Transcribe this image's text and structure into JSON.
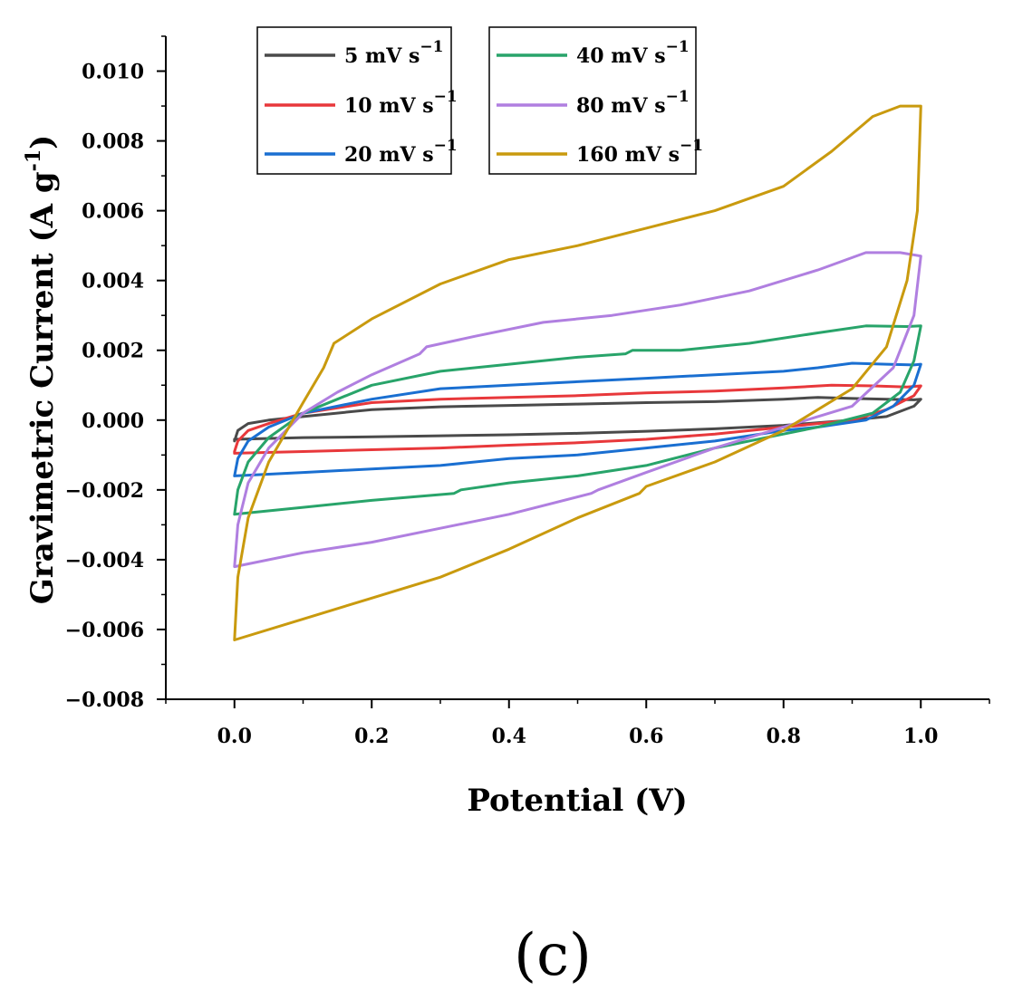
{
  "chart_data": {
    "type": "line",
    "title": "",
    "panel_label": "(c)",
    "xlabel": "Potential (V)",
    "ylabel_main": "Gravimetric Current (A g",
    "ylabel_sup": "-1",
    "ylabel_close": ")",
    "xlim": [
      -0.1,
      1.1
    ],
    "ylim": [
      -0.008,
      0.011
    ],
    "xticks": [
      0.0,
      0.2,
      0.4,
      0.6,
      0.8,
      1.0
    ],
    "xtick_labels": [
      "0.0",
      "0.2",
      "0.4",
      "0.6",
      "0.8",
      "1.0"
    ],
    "yticks": [
      -0.008,
      -0.006,
      -0.004,
      -0.002,
      0.0,
      0.002,
      0.004,
      0.006,
      0.008,
      0.01
    ],
    "ytick_labels": [
      "−0.008",
      "−0.006",
      "−0.004",
      "−0.002",
      "0.000",
      "0.002",
      "0.004",
      "0.006",
      "0.008",
      "0.010"
    ],
    "grid": false,
    "legend_position": "top",
    "series": [
      {
        "name": "5 mV s⁻¹",
        "label_main": "5 mV s",
        "label_sup": "−1",
        "color": "#4a4a4a",
        "upper": [
          [
            0.0,
            -0.0006
          ],
          [
            0.005,
            -0.0003
          ],
          [
            0.02,
            -0.0001
          ],
          [
            0.05,
            0.0
          ],
          [
            0.1,
            0.0001
          ],
          [
            0.2,
            0.0003
          ],
          [
            0.3,
            0.00038
          ],
          [
            0.4,
            0.00042
          ],
          [
            0.5,
            0.00046
          ],
          [
            0.6,
            0.0005
          ],
          [
            0.7,
            0.00053
          ],
          [
            0.8,
            0.0006
          ],
          [
            0.85,
            0.00065
          ],
          [
            0.9,
            0.00062
          ],
          [
            0.95,
            0.0006
          ],
          [
            0.99,
            0.00058
          ],
          [
            1.0,
            0.0006
          ]
        ],
        "lower": [
          [
            1.0,
            0.0006
          ],
          [
            0.99,
            0.0004
          ],
          [
            0.95,
            0.0001
          ],
          [
            0.9,
            0.0
          ],
          [
            0.8,
            -0.00015
          ],
          [
            0.7,
            -0.00025
          ],
          [
            0.6,
            -0.00032
          ],
          [
            0.5,
            -0.00038
          ],
          [
            0.4,
            -0.00042
          ],
          [
            0.3,
            -0.00045
          ],
          [
            0.2,
            -0.00048
          ],
          [
            0.1,
            -0.0005
          ],
          [
            0.0,
            -0.00055
          ],
          [
            0.0,
            -0.0006
          ]
        ]
      },
      {
        "name": "10 mV s⁻¹",
        "label_main": "10 mV s",
        "label_sup": "−1",
        "color": "#e8383b",
        "upper": [
          [
            0.0,
            -0.0009
          ],
          [
            0.005,
            -0.0006
          ],
          [
            0.02,
            -0.0003
          ],
          [
            0.05,
            -0.0001
          ],
          [
            0.1,
            0.0002
          ],
          [
            0.2,
            0.0005
          ],
          [
            0.3,
            0.0006
          ],
          [
            0.4,
            0.00065
          ],
          [
            0.5,
            0.0007
          ],
          [
            0.6,
            0.00078
          ],
          [
            0.7,
            0.00083
          ],
          [
            0.8,
            0.00092
          ],
          [
            0.87,
            0.001
          ],
          [
            0.93,
            0.00098
          ],
          [
            0.98,
            0.00095
          ],
          [
            1.0,
            0.00098
          ]
        ],
        "lower": [
          [
            1.0,
            0.00098
          ],
          [
            0.99,
            0.0007
          ],
          [
            0.95,
            0.0003
          ],
          [
            0.9,
            0.0
          ],
          [
            0.8,
            -0.0002
          ],
          [
            0.7,
            -0.0004
          ],
          [
            0.6,
            -0.00055
          ],
          [
            0.5,
            -0.00065
          ],
          [
            0.4,
            -0.00072
          ],
          [
            0.3,
            -0.0008
          ],
          [
            0.2,
            -0.00085
          ],
          [
            0.1,
            -0.0009
          ],
          [
            0.0,
            -0.00095
          ],
          [
            0.0,
            -0.0009
          ]
        ]
      },
      {
        "name": "20 mV s⁻¹",
        "label_main": "20 mV s",
        "label_sup": "−1",
        "color": "#1a6fd1",
        "upper": [
          [
            0.0,
            -0.0016
          ],
          [
            0.005,
            -0.0011
          ],
          [
            0.02,
            -0.0006
          ],
          [
            0.05,
            -0.0002
          ],
          [
            0.1,
            0.0002
          ],
          [
            0.2,
            0.0006
          ],
          [
            0.3,
            0.0009
          ],
          [
            0.4,
            0.001
          ],
          [
            0.5,
            0.0011
          ],
          [
            0.6,
            0.0012
          ],
          [
            0.7,
            0.0013
          ],
          [
            0.8,
            0.0014
          ],
          [
            0.85,
            0.0015
          ],
          [
            0.9,
            0.00163
          ],
          [
            0.95,
            0.0016
          ],
          [
            0.99,
            0.00158
          ],
          [
            1.0,
            0.0016
          ]
        ],
        "lower": [
          [
            1.0,
            0.0016
          ],
          [
            0.99,
            0.001
          ],
          [
            0.96,
            0.0004
          ],
          [
            0.92,
            0.0
          ],
          [
            0.85,
            -0.0002
          ],
          [
            0.8,
            -0.0003
          ],
          [
            0.7,
            -0.0006
          ],
          [
            0.6,
            -0.0008
          ],
          [
            0.5,
            -0.001
          ],
          [
            0.4,
            -0.0011
          ],
          [
            0.3,
            -0.0013
          ],
          [
            0.2,
            -0.0014
          ],
          [
            0.1,
            -0.0015
          ],
          [
            0.0,
            -0.0016
          ]
        ]
      },
      {
        "name": "40 mV s⁻¹",
        "label_main": "40 mV s",
        "label_sup": "−1",
        "color": "#28a46a",
        "upper": [
          [
            0.0,
            -0.0027
          ],
          [
            0.005,
            -0.002
          ],
          [
            0.02,
            -0.0012
          ],
          [
            0.05,
            -0.0005
          ],
          [
            0.1,
            0.0002
          ],
          [
            0.15,
            0.0006
          ],
          [
            0.2,
            0.001
          ],
          [
            0.3,
            0.0014
          ],
          [
            0.4,
            0.0016
          ],
          [
            0.5,
            0.0018
          ],
          [
            0.57,
            0.0019
          ],
          [
            0.58,
            0.002
          ],
          [
            0.65,
            0.002
          ],
          [
            0.75,
            0.0022
          ],
          [
            0.85,
            0.0025
          ],
          [
            0.92,
            0.0027
          ],
          [
            0.98,
            0.00268
          ],
          [
            1.0,
            0.0027
          ]
        ],
        "lower": [
          [
            1.0,
            0.0027
          ],
          [
            0.99,
            0.0017
          ],
          [
            0.97,
            0.0008
          ],
          [
            0.93,
            0.0002
          ],
          [
            0.85,
            -0.0002
          ],
          [
            0.8,
            -0.0004
          ],
          [
            0.7,
            -0.0008
          ],
          [
            0.6,
            -0.0013
          ],
          [
            0.5,
            -0.0016
          ],
          [
            0.4,
            -0.0018
          ],
          [
            0.33,
            -0.002
          ],
          [
            0.32,
            -0.0021
          ],
          [
            0.2,
            -0.0023
          ],
          [
            0.1,
            -0.0025
          ],
          [
            0.0,
            -0.0027
          ]
        ]
      },
      {
        "name": "80 mV s⁻¹",
        "label_main": "80 mV s",
        "label_sup": "−1",
        "color": "#b07fe0",
        "upper": [
          [
            0.0,
            -0.0042
          ],
          [
            0.005,
            -0.003
          ],
          [
            0.02,
            -0.0018
          ],
          [
            0.05,
            -0.0008
          ],
          [
            0.1,
            0.0002
          ],
          [
            0.15,
            0.0008
          ],
          [
            0.2,
            0.0013
          ],
          [
            0.27,
            0.0019
          ],
          [
            0.28,
            0.0021
          ],
          [
            0.35,
            0.0024
          ],
          [
            0.45,
            0.0028
          ],
          [
            0.55,
            0.003
          ],
          [
            0.65,
            0.0033
          ],
          [
            0.75,
            0.0037
          ],
          [
            0.85,
            0.0043
          ],
          [
            0.92,
            0.0048
          ],
          [
            0.97,
            0.0048
          ],
          [
            1.0,
            0.0047
          ]
        ],
        "lower": [
          [
            1.0,
            0.0047
          ],
          [
            0.99,
            0.003
          ],
          [
            0.96,
            0.0015
          ],
          [
            0.9,
            0.0004
          ],
          [
            0.8,
            -0.0002
          ],
          [
            0.7,
            -0.0008
          ],
          [
            0.6,
            -0.0015
          ],
          [
            0.53,
            -0.002
          ],
          [
            0.52,
            -0.0021
          ],
          [
            0.4,
            -0.0027
          ],
          [
            0.3,
            -0.0031
          ],
          [
            0.2,
            -0.0035
          ],
          [
            0.1,
            -0.0038
          ],
          [
            0.0,
            -0.0042
          ]
        ]
      },
      {
        "name": "160 mV s⁻¹",
        "label_main": "160 mV s",
        "label_sup": "−1",
        "color": "#c99a0e",
        "upper": [
          [
            0.0,
            -0.0063
          ],
          [
            0.005,
            -0.0045
          ],
          [
            0.02,
            -0.0028
          ],
          [
            0.05,
            -0.0012
          ],
          [
            0.1,
            0.0005
          ],
          [
            0.13,
            0.0015
          ],
          [
            0.145,
            0.0022
          ],
          [
            0.2,
            0.0029
          ],
          [
            0.3,
            0.0039
          ],
          [
            0.4,
            0.0046
          ],
          [
            0.5,
            0.005
          ],
          [
            0.6,
            0.0055
          ],
          [
            0.7,
            0.006
          ],
          [
            0.8,
            0.0067
          ],
          [
            0.87,
            0.0077
          ],
          [
            0.93,
            0.0087
          ],
          [
            0.97,
            0.009
          ],
          [
            1.0,
            0.009
          ]
        ],
        "lower": [
          [
            1.0,
            0.009
          ],
          [
            0.995,
            0.006
          ],
          [
            0.98,
            0.004
          ],
          [
            0.95,
            0.0021
          ],
          [
            0.9,
            0.0009
          ],
          [
            0.85,
            0.0003
          ],
          [
            0.8,
            -0.0003
          ],
          [
            0.7,
            -0.0012
          ],
          [
            0.6,
            -0.0019
          ],
          [
            0.59,
            -0.0021
          ],
          [
            0.5,
            -0.0028
          ],
          [
            0.4,
            -0.0037
          ],
          [
            0.3,
            -0.0045
          ],
          [
            0.2,
            -0.0051
          ],
          [
            0.1,
            -0.0057
          ],
          [
            0.0,
            -0.0063
          ]
        ]
      }
    ]
  }
}
